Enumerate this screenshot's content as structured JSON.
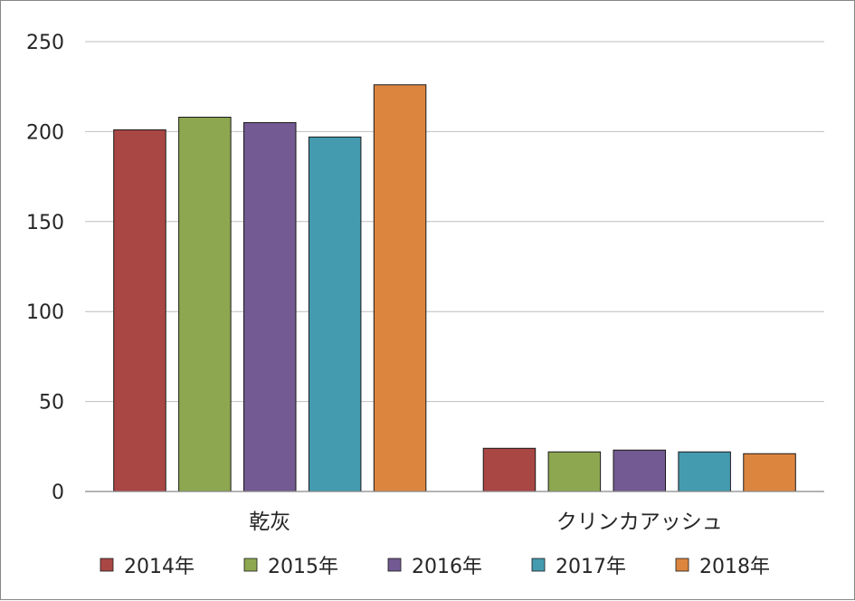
{
  "chart_data": {
    "type": "bar",
    "categories": [
      "乾灰",
      "クリンカアッシュ"
    ],
    "series": [
      {
        "name": "2014年",
        "color": "#A94745",
        "values": [
          201,
          24
        ]
      },
      {
        "name": "2015年",
        "color": "#8DA750",
        "values": [
          208,
          22
        ]
      },
      {
        "name": "2016年",
        "color": "#735A92",
        "values": [
          205,
          23
        ]
      },
      {
        "name": "2017年",
        "color": "#449BB0",
        "values": [
          197,
          22
        ]
      },
      {
        "name": "2018年",
        "color": "#DC853F",
        "values": [
          226,
          21
        ]
      }
    ],
    "ylim": [
      0,
      250
    ],
    "yticks": [
      0,
      50,
      100,
      150,
      200,
      250
    ],
    "grid": true,
    "legend": "bottom"
  }
}
